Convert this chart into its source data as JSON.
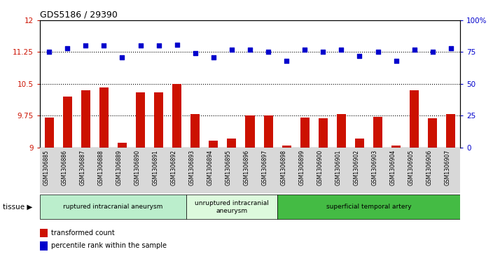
{
  "title": "GDS5186 / 29390",
  "samples": [
    "GSM1306885",
    "GSM1306886",
    "GSM1306887",
    "GSM1306888",
    "GSM1306889",
    "GSM1306890",
    "GSM1306891",
    "GSM1306892",
    "GSM1306893",
    "GSM1306894",
    "GSM1306895",
    "GSM1306896",
    "GSM1306897",
    "GSM1306898",
    "GSM1306899",
    "GSM1306900",
    "GSM1306901",
    "GSM1306902",
    "GSM1306903",
    "GSM1306904",
    "GSM1306905",
    "GSM1306906",
    "GSM1306907"
  ],
  "bar_values": [
    9.7,
    10.2,
    10.35,
    10.42,
    9.1,
    10.3,
    10.3,
    10.5,
    9.78,
    9.15,
    9.2,
    9.75,
    9.75,
    9.05,
    9.7,
    9.68,
    9.78,
    9.2,
    9.72,
    9.05,
    10.35,
    9.68,
    9.78
  ],
  "dot_values": [
    75,
    78,
    80,
    80,
    71,
    80,
    80,
    81,
    74,
    71,
    77,
    77,
    75,
    68,
    77,
    75,
    77,
    72,
    75,
    68,
    77,
    75,
    78
  ],
  "ylim_left": [
    9,
    12
  ],
  "ylim_right": [
    0,
    100
  ],
  "yticks_left": [
    9,
    9.75,
    10.5,
    11.25,
    12
  ],
  "yticks_right": [
    0,
    25,
    50,
    75,
    100
  ],
  "ytick_labels_left": [
    "9",
    "9.75",
    "10.5",
    "11.25",
    "12"
  ],
  "ytick_labels_right": [
    "0",
    "25",
    "50",
    "75",
    "100%"
  ],
  "hlines": [
    9.75,
    10.5,
    11.25
  ],
  "bar_color": "#cc1100",
  "dot_color": "#0000cc",
  "groups": [
    {
      "label": "ruptured intracranial aneurysm",
      "start": 0,
      "end": 7,
      "color": "#bbeecc"
    },
    {
      "label": "unruptured intracranial\naneurysm",
      "start": 8,
      "end": 12,
      "color": "#ddfadd"
    },
    {
      "label": "superficial temporal artery",
      "start": 13,
      "end": 22,
      "color": "#44bb44"
    }
  ],
  "legend_items": [
    {
      "label": "transformed count",
      "color": "#cc1100"
    },
    {
      "label": "percentile rank within the sample",
      "color": "#0000cc"
    }
  ],
  "tissue_label": "tissue",
  "plot_bg_color": "#ffffff"
}
